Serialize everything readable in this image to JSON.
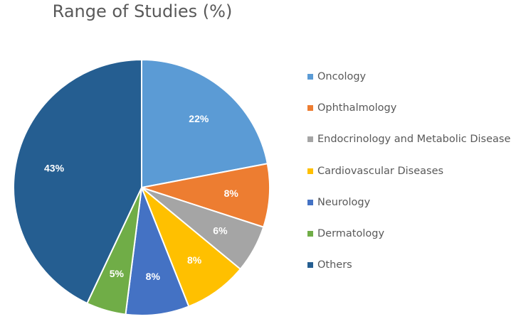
{
  "chart_data": {
    "type": "pie",
    "title": "Range of Studies (%)",
    "categories": [
      "Oncology",
      "Ophthalmology",
      "Endocrinology and Metabolic Disease",
      "Cardiovascular Diseases",
      "Neurology",
      "Dermatology",
      "Others"
    ],
    "values": [
      22,
      8,
      6,
      8,
      8,
      5,
      43
    ],
    "data_labels": [
      "22%",
      "8%",
      "6%",
      "8%",
      "8%",
      "5%",
      "43%"
    ],
    "colors": [
      "#5B9BD5",
      "#ED7D31",
      "#A5A5A5",
      "#FFC000",
      "#4472C4",
      "#70AD47",
      "#255E91"
    ],
    "legend_position": "right"
  }
}
